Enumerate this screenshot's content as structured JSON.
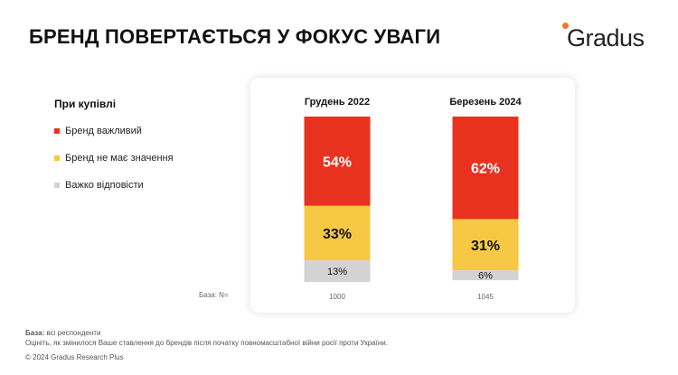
{
  "title": "БРЕНД ПОВЕРТАЄТЬСЯ У ФОКУС УВАГИ",
  "logo_text": "Gradus",
  "legend": {
    "title": "При купівлі",
    "items": [
      {
        "label": "Бренд важливий",
        "color": "#e8321f"
      },
      {
        "label": "Бренд не має значення",
        "color": "#f7c843"
      },
      {
        "label": "Важко відповісти",
        "color": "#d3d3d3"
      }
    ]
  },
  "base_label": "База: N=",
  "chart_data": {
    "type": "bar",
    "stacked": true,
    "categories": [
      "Грудень 2022",
      "Березень 2024"
    ],
    "series": [
      {
        "name": "Бренд важливий",
        "color": "#e8321f",
        "values": [
          54,
          62
        ]
      },
      {
        "name": "Бренд не має значення",
        "color": "#f7c843",
        "values": [
          33,
          31
        ]
      },
      {
        "name": "Важко відповісти",
        "color": "#d3d3d3",
        "values": [
          13,
          6
        ]
      }
    ],
    "data_labels": [
      [
        "54%",
        "62%"
      ],
      [
        "33%",
        "31%"
      ],
      [
        "13%",
        "6%"
      ]
    ],
    "base_n": [
      "1000",
      "1045"
    ],
    "ylim": [
      0,
      100
    ]
  },
  "footer": {
    "base_prefix": "База:",
    "base_text": " всі респонденти",
    "question": "Оцініть, як змінилося Ваше ставлення до брендів після початку повномасштабної війни росії проти України.",
    "copyright": "© 2024 Gradus Research Plus"
  }
}
